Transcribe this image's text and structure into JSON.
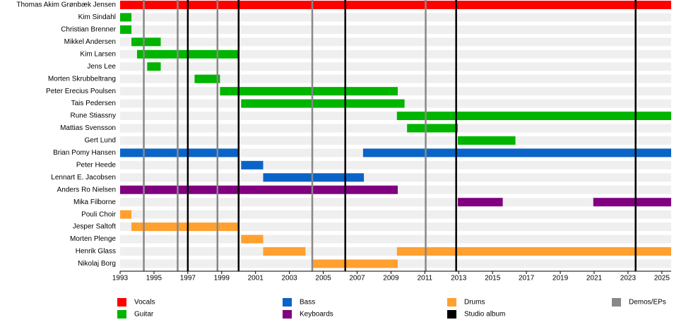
{
  "chart_data": {
    "type": "timeline",
    "categories": [
      "Thomas Akim Grønbæk Jensen",
      "Kim Sindahl",
      "Christian Brenner",
      "Mikkel Andersen",
      "Kim Larsen",
      "Jens Lee",
      "Morten Skrubbeltrang",
      "Peter Erecius Poulsen",
      "Tais Pedersen",
      "Rune Stiassny",
      "Mattias Svensson",
      "Gert Lund",
      "Brian Pomy Hansen",
      "Peter Heede",
      "Lennart E. Jacobsen",
      "Anders Ro Nielsen",
      "Mika Filborne",
      "Pouli Choir",
      "Jesper Saltoft",
      "Morten Plenge",
      "Henrik Glass",
      "Nikolaj Borg"
    ],
    "series": [
      {
        "name": "Vocals",
        "color": "#ff0000",
        "bars": [
          {
            "member": "Thomas Akim Grønbæk Jensen",
            "start": 1993,
            "end": 2025.55
          }
        ]
      },
      {
        "name": "Guitar",
        "color": "#00b400",
        "bars": [
          {
            "member": "Kim Sindahl",
            "start": 1993,
            "end": 1993.67
          },
          {
            "member": "Christian Brenner",
            "start": 1993,
            "end": 1993.67
          },
          {
            "member": "Mikkel Andersen",
            "start": 1993.67,
            "end": 1995.4
          },
          {
            "member": "Kim Larsen",
            "start": 1994,
            "end": 2000
          },
          {
            "member": "Jens Lee",
            "start": 1994.6,
            "end": 1995.4
          },
          {
            "member": "Morten Skrubbeltrang",
            "start": 1997.4,
            "end": 1998.9
          },
          {
            "member": "Peter Erecius Poulsen",
            "start": 1998.9,
            "end": 2009.4
          },
          {
            "member": "Tais Pedersen",
            "start": 2000.15,
            "end": 2009.8
          },
          {
            "member": "Rune Stiassny",
            "start": 2009.35,
            "end": 2025.55
          },
          {
            "member": "Mattias Svensson",
            "start": 2009.95,
            "end": 2012.95
          },
          {
            "member": "Gert Lund",
            "start": 2012.95,
            "end": 2016.35
          }
        ]
      },
      {
        "name": "Bass",
        "color": "#0a64c8",
        "bars": [
          {
            "member": "Brian Pomy Hansen",
            "start": 1993,
            "end": 2000
          },
          {
            "member": "Brian Pomy Hansen",
            "start": 2007.35,
            "end": 2025.55
          },
          {
            "member": "Peter Heede",
            "start": 2000.15,
            "end": 2001.45
          },
          {
            "member": "Lennart E. Jacobsen",
            "start": 2001.45,
            "end": 2007.4
          }
        ]
      },
      {
        "name": "Keyboards",
        "color": "#800080",
        "bars": [
          {
            "member": "Anders Ro Nielsen",
            "start": 1993,
            "end": 2009.4
          },
          {
            "member": "Mika Filborne",
            "start": 2012.95,
            "end": 2015.6
          },
          {
            "member": "Mika Filborne",
            "start": 2020.95,
            "end": 2025.55
          }
        ]
      },
      {
        "name": "Drums",
        "color": "#ffa030",
        "bars": [
          {
            "member": "Pouli Choir",
            "start": 1993,
            "end": 1993.67
          },
          {
            "member": "Jesper Saltoft",
            "start": 1993.67,
            "end": 2000
          },
          {
            "member": "Morten Plenge",
            "start": 2000.15,
            "end": 2001.45
          },
          {
            "member": "Henrik Glass",
            "start": 2001.45,
            "end": 2003.95
          },
          {
            "member": "Henrik Glass",
            "start": 2009.35,
            "end": 2025.55
          },
          {
            "member": "Nikolaj Borg",
            "start": 2004.4,
            "end": 2009.4
          }
        ]
      }
    ],
    "releases": [
      {
        "name": "Studio album",
        "color": "#000000",
        "values": [
          1997,
          2000,
          2006.3,
          2012.85,
          2023.45
        ]
      },
      {
        "name": "Demos/EPs",
        "color": "#888888",
        "values": [
          1994.4,
          1996.4,
          1998.75,
          2004.35,
          2011.05
        ]
      }
    ],
    "xlim": [
      1993,
      2025.55
    ],
    "xticks": [
      1993,
      1995,
      1997,
      1999,
      2001,
      2003,
      2005,
      2007,
      2009,
      2011,
      2013,
      2015,
      2017,
      2019,
      2021,
      2023,
      2025
    ]
  }
}
